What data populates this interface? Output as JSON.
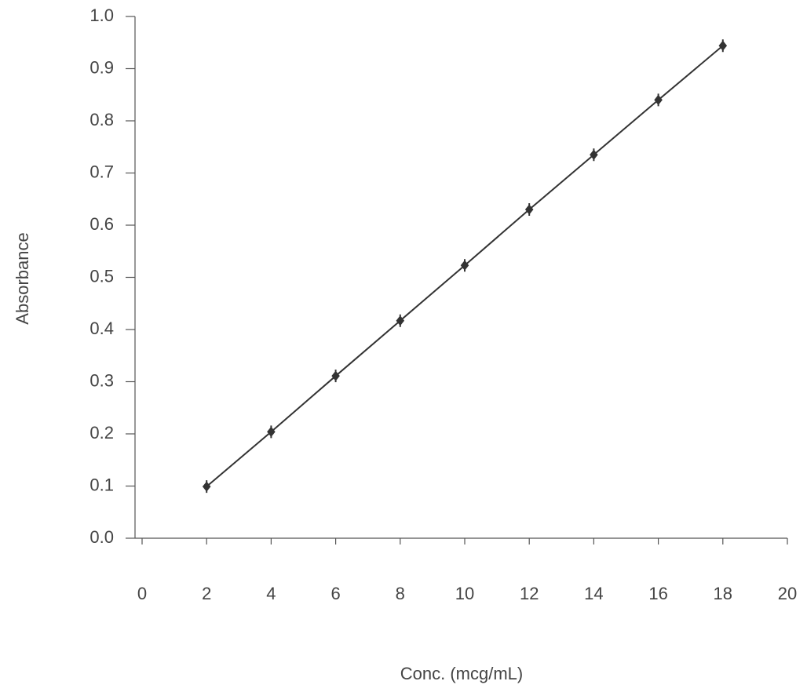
{
  "chart_data": {
    "type": "line",
    "x_label": "Conc. (mcg/mL)",
    "y_label": "Absorbance",
    "x": [
      2,
      4,
      6,
      8,
      10,
      12,
      14,
      16,
      18
    ],
    "series": [
      {
        "color": "#333333",
        "values": [
          0.099,
          0.204,
          0.311,
          0.417,
          0.523,
          0.63,
          0.735,
          0.84,
          0.944
        ]
      }
    ],
    "xlim": [
      0,
      20
    ],
    "xticks": [
      0,
      2,
      4,
      6,
      8,
      10,
      12,
      14,
      16,
      18,
      20
    ],
    "ylim": [
      0,
      1
    ],
    "yticks": [
      {
        "value": 0,
        "label": "0.0"
      },
      0.1,
      0.2,
      0.3,
      0.4,
      0.5,
      0.6,
      0.7,
      0.8,
      0.9,
      {
        "value": 1,
        "label": "1.0"
      }
    ],
    "grid": false
  }
}
